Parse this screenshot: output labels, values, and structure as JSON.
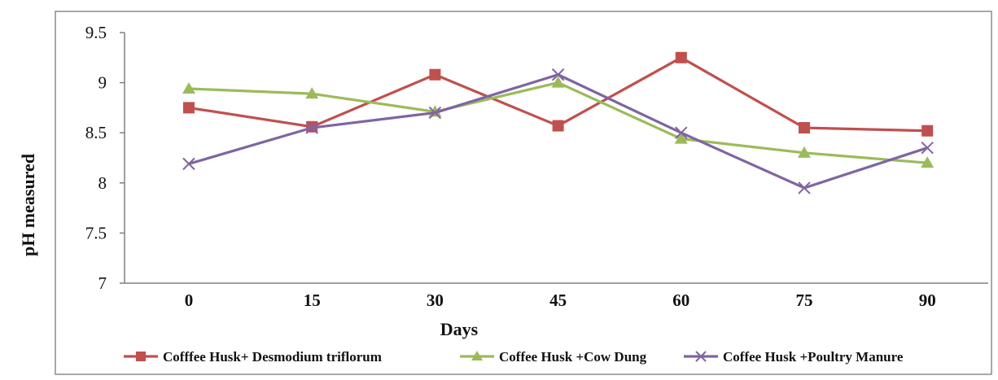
{
  "chart_data": {
    "type": "line",
    "xlabel": "Days",
    "ylabel": "pH measured",
    "categories": [
      "0",
      "15",
      "30",
      "45",
      "60",
      "75",
      "90"
    ],
    "yticks": [
      "7",
      "7.5",
      "8",
      "8.5",
      "9",
      "9.5"
    ],
    "ylim": [
      7,
      9.5
    ],
    "grid": false,
    "legend_position": "bottom",
    "series": [
      {
        "name": "Cofffee Husk+ Desmodium triflorum",
        "color": "#c0504d",
        "marker": "square",
        "values": [
          8.75,
          8.56,
          9.08,
          8.57,
          9.25,
          8.55,
          8.52
        ]
      },
      {
        "name": "Coffee Husk +Cow Dung",
        "color": "#9bbb59",
        "marker": "triangle",
        "values": [
          8.94,
          8.89,
          8.71,
          9.0,
          8.44,
          8.3,
          8.2
        ]
      },
      {
        "name": "Coffee Husk +Poultry Manure",
        "color": "#8064a2",
        "marker": "x",
        "values": [
          8.19,
          8.55,
          8.7,
          9.08,
          8.5,
          7.95,
          8.35
        ]
      }
    ]
  }
}
